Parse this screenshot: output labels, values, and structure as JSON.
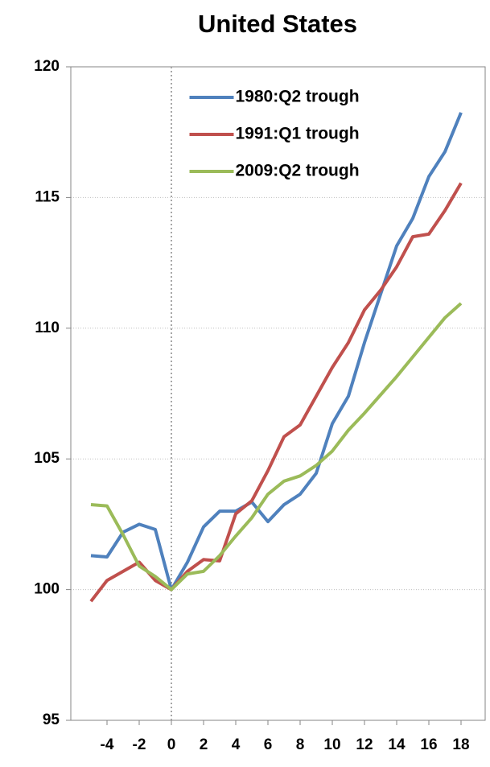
{
  "chart_data": {
    "type": "line",
    "title": "United States",
    "x": [
      -5,
      -4,
      -3,
      -2,
      -1,
      0,
      1,
      2,
      3,
      4,
      5,
      6,
      7,
      8,
      9,
      10,
      11,
      12,
      13,
      14,
      15,
      16,
      17,
      18
    ],
    "series": [
      {
        "name": "1980:Q2 trough",
        "color": "#4f81bd",
        "values": [
          101.3,
          101.25,
          102.2,
          102.5,
          102.3,
          100.0,
          101.05,
          102.4,
          103.0,
          103.0,
          103.35,
          102.6,
          103.25,
          103.65,
          104.45,
          106.35,
          107.4,
          109.45,
          111.3,
          113.15,
          114.2,
          115.8,
          116.75,
          118.25
        ]
      },
      {
        "name": "1991:Q1 trough",
        "color": "#c0504d",
        "values": [
          99.55,
          100.35,
          100.7,
          101.05,
          100.35,
          100.0,
          100.7,
          101.15,
          101.1,
          102.9,
          103.4,
          104.55,
          105.85,
          106.3,
          107.4,
          108.5,
          109.45,
          110.7,
          111.45,
          112.35,
          113.5,
          113.6,
          114.5,
          115.55
        ]
      },
      {
        "name": "2009:Q2 trough",
        "color": "#9bbb59",
        "values": [
          103.25,
          103.2,
          102.1,
          100.9,
          100.5,
          100.0,
          100.6,
          100.7,
          101.3,
          102.05,
          102.75,
          103.65,
          104.15,
          104.35,
          104.75,
          105.3,
          106.1,
          106.75,
          107.45,
          108.15,
          108.9,
          109.65,
          110.4,
          110.95
        ]
      }
    ],
    "xlim": [
      -6.25,
      19.5
    ],
    "xticks": [
      -4,
      -2,
      0,
      2,
      4,
      6,
      8,
      10,
      12,
      14,
      16,
      18
    ],
    "ylim": [
      95,
      120
    ],
    "yticks": [
      95,
      100,
      105,
      110,
      115,
      120
    ],
    "grid": true,
    "legend": "upper center"
  }
}
